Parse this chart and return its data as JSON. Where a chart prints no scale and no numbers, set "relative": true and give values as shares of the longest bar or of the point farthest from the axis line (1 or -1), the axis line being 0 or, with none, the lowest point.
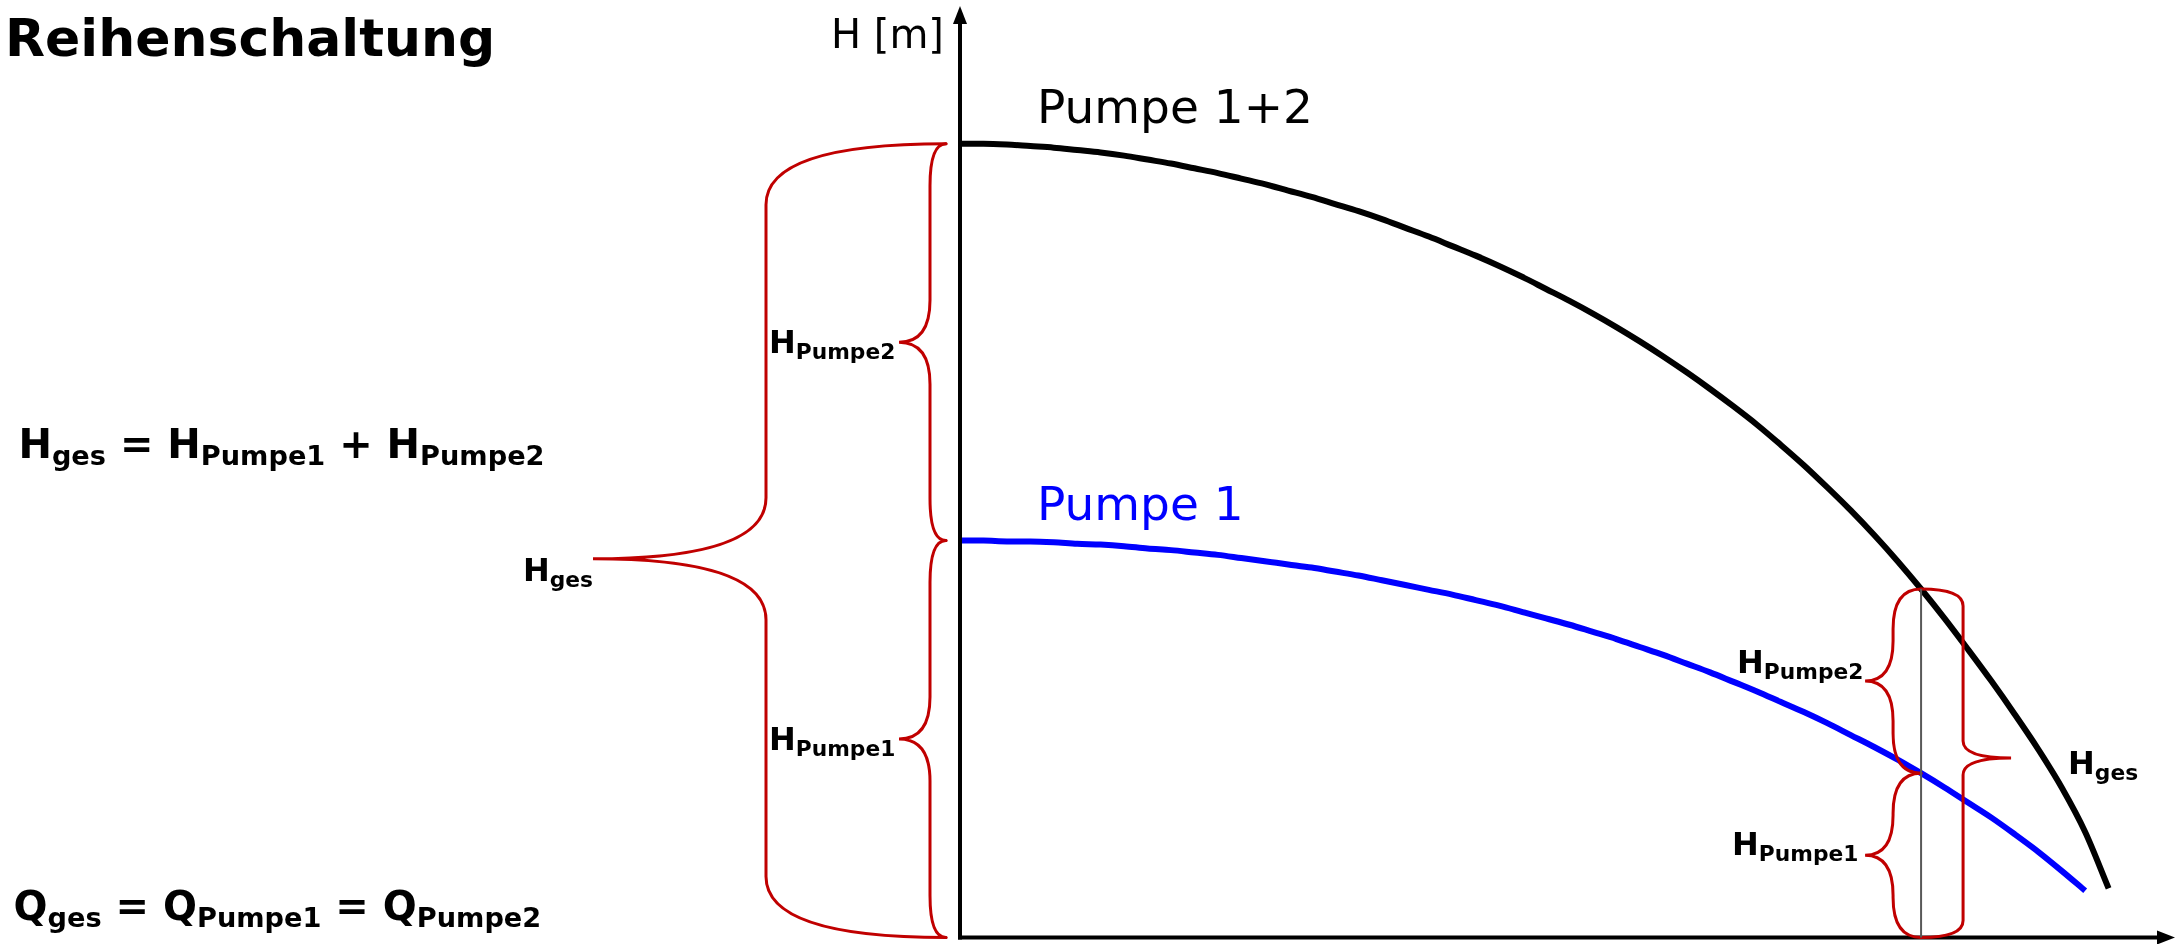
{
  "chart_data": {
    "type": "line",
    "title": "Reihenschaltung",
    "ylabel": "H [m]",
    "relative": true,
    "categories": [
      null,
      null,
      null,
      null,
      null,
      null,
      null,
      null,
      null,
      null,
      null,
      null,
      null,
      null,
      null,
      null,
      null,
      null,
      null,
      null,
      null,
      null,
      null,
      null,
      null,
      null,
      null,
      null,
      null,
      null,
      null,
      null,
      null,
      null,
      null,
      null,
      null,
      null,
      null,
      null,
      null,
      null,
      null,
      null,
      null,
      null,
      null,
      null,
      null,
      null
    ],
    "series": [
      {
        "name": "Pumpe 1+2",
        "color": "#000000",
        "values": [
          1,
          1,
          0.999,
          0.997,
          0.995,
          0.992,
          0.989,
          0.985,
          0.98,
          0.975,
          0.969,
          0.963,
          0.956,
          0.949,
          0.941,
          0.933,
          0.924,
          0.915,
          0.905,
          0.894,
          0.883,
          0.871,
          0.859,
          0.846,
          0.832,
          0.817,
          0.802,
          0.786,
          0.769,
          0.751,
          0.732,
          0.712,
          0.691,
          0.669,
          0.646,
          0.621,
          0.595,
          0.567,
          0.538,
          0.507,
          0.474,
          0.439,
          0.402,
          0.363,
          0.323,
          0.281,
          0.237,
          0.189,
          0.133,
          0.062
        ]
      },
      {
        "name": "Pumpe 1",
        "color": "#0000ff",
        "values": [
          0.5,
          0.5,
          0.499,
          0.499,
          0.498,
          0.496,
          0.495,
          0.493,
          0.49,
          0.488,
          0.485,
          0.482,
          0.478,
          0.474,
          0.47,
          0.466,
          0.461,
          0.456,
          0.45,
          0.444,
          0.438,
          0.432,
          0.425,
          0.418,
          0.41,
          0.402,
          0.394,
          0.385,
          0.376,
          0.366,
          0.356,
          0.345,
          0.334,
          0.322,
          0.31,
          0.297,
          0.284,
          0.27,
          0.255,
          0.24,
          0.224,
          0.207,
          0.189,
          0.17,
          0.151,
          0.13,
          0.108,
          0.084,
          0.059,
          null
        ]
      }
    ],
    "annotations": [
      "H$_{ges}$ = H$_{Pumpe1}$ + H$_{Pumpe2}$",
      "Q$_{ges}$ = Q$_{Pumpe1}$ = Q$_{Pumpe2}$",
      "H$_{ges}$",
      "H$_{Pumpe2}$",
      "H$_{Pumpe1}$",
      "H$_{Pumpe2}$",
      "H$_{Pumpe1}$",
      "H$_{ges}$"
    ]
  }
}
